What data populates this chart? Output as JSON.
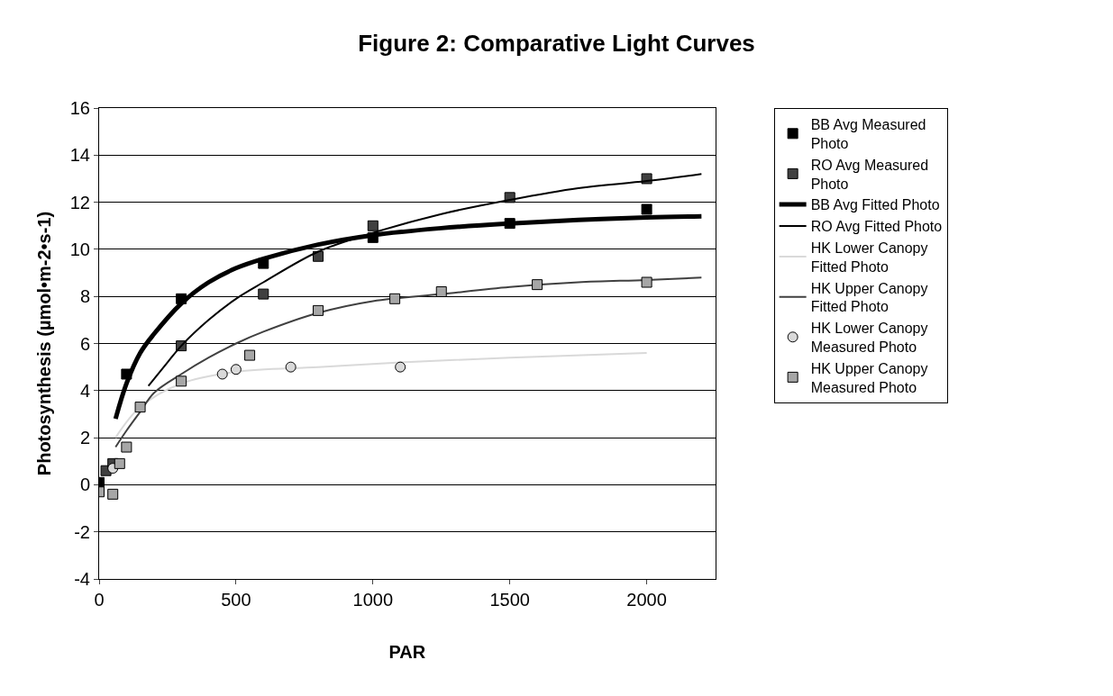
{
  "chart_data": {
    "type": "scatter",
    "title": "Figure 2: Comparative Light Curves",
    "xlabel": "PAR",
    "ylabel": "Photosynthesis (µmol•m-2•s-1)",
    "xlim": [
      0,
      2250
    ],
    "xticks": [
      0,
      500,
      1000,
      1500,
      2000
    ],
    "ylim": [
      -4,
      16
    ],
    "yticks": [
      -4,
      -2,
      0,
      2,
      4,
      6,
      8,
      10,
      12,
      14,
      16
    ],
    "grid": "y",
    "legend": "right",
    "series": [
      {
        "name": "BB Avg Measured Photo",
        "marker": "square",
        "color": "#000000",
        "x": [
          0,
          100,
          300,
          600,
          1000,
          1500,
          2000
        ],
        "values": [
          0.1,
          4.7,
          7.9,
          9.4,
          10.5,
          11.1,
          11.7
        ]
      },
      {
        "name": "RO Avg Measured Photo",
        "marker": "square",
        "color": "#404040",
        "x": [
          25,
          50,
          300,
          600,
          800,
          1000,
          1500,
          2000
        ],
        "values": [
          0.6,
          0.9,
          5.9,
          8.1,
          9.7,
          11.0,
          12.2,
          13.0
        ]
      },
      {
        "name": "BB Avg Fitted Photo",
        "type": "line",
        "marker": "none",
        "color": "#000000",
        "x": [
          60,
          100,
          150,
          200,
          300,
          400,
          500,
          600,
          800,
          1000,
          1250,
          1500,
          1750,
          2000,
          2200
        ],
        "values": [
          2.8,
          4.3,
          5.6,
          6.4,
          7.7,
          8.6,
          9.2,
          9.6,
          10.2,
          10.6,
          10.9,
          11.1,
          11.25,
          11.35,
          11.4
        ]
      },
      {
        "name": "RO Avg Fitted Photo",
        "type": "line",
        "marker": "none",
        "color": "#000000",
        "x": [
          180,
          250,
          300,
          400,
          500,
          600,
          800,
          1000,
          1250,
          1500,
          1750,
          2000,
          2200
        ],
        "values": [
          4.2,
          5.2,
          5.9,
          7.0,
          7.9,
          8.6,
          9.9,
          10.7,
          11.5,
          12.1,
          12.6,
          12.9,
          13.2
        ]
      },
      {
        "name": "HK Lower Canopy Fitted Photo",
        "type": "line",
        "marker": "none",
        "color": "#d9d9d9",
        "x": [
          60,
          150,
          300,
          500,
          800,
          1100,
          1500,
          2000
        ],
        "values": [
          2.0,
          3.3,
          4.3,
          4.8,
          5.0,
          5.2,
          5.4,
          5.6
        ]
      },
      {
        "name": "HK Upper Canopy Fitted Photo",
        "type": "line",
        "marker": "none",
        "color": "#404040",
        "x": [
          60,
          100,
          150,
          200,
          300,
          400,
          500,
          600,
          800,
          1000,
          1250,
          1500,
          1750,
          2000,
          2200
        ],
        "values": [
          1.6,
          2.3,
          3.1,
          3.9,
          4.7,
          5.4,
          6.0,
          6.5,
          7.3,
          7.8,
          8.1,
          8.4,
          8.6,
          8.7,
          8.8
        ]
      },
      {
        "name": "HK Lower Canopy Measured Photo",
        "marker": "circle",
        "color": "#d9d9d9",
        "x": [
          50,
          450,
          500,
          700,
          1100
        ],
        "values": [
          0.7,
          4.7,
          4.9,
          5.0,
          5.0
        ]
      },
      {
        "name": "HK Upper Canopy Measured Photo",
        "marker": "square",
        "color": "#a6a6a6",
        "x": [
          0,
          50,
          75,
          100,
          150,
          300,
          550,
          800,
          1080,
          1250,
          1600,
          2000
        ],
        "values": [
          -0.3,
          -0.4,
          0.9,
          1.6,
          3.3,
          4.4,
          5.5,
          7.4,
          7.9,
          8.2,
          8.5,
          8.6
        ]
      }
    ]
  }
}
